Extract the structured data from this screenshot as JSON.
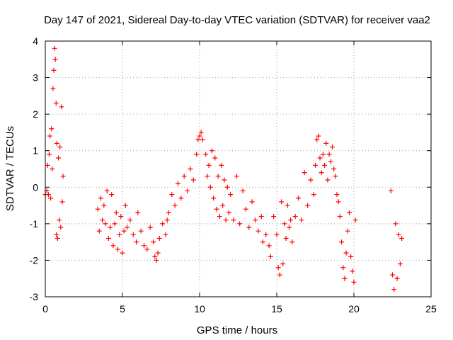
{
  "chart_data": {
    "type": "scatter",
    "title": "Day 147 of 2021, Sidereal Day-to-day VTEC variation (SDTVAR) for receiver vaa2",
    "xlabel": "GPS time / hours",
    "ylabel": "SDTVAR / TECUs",
    "xlim": [
      0,
      25
    ],
    "ylim": [
      -3,
      4
    ],
    "xticks": [
      0,
      5,
      10,
      15,
      20,
      25
    ],
    "yticks": [
      -3,
      -2,
      -1,
      0,
      1,
      2,
      3,
      4
    ],
    "grid": true,
    "marker": "+",
    "color": "#ff0000",
    "series": [
      {
        "name": "vaa2",
        "points": [
          [
            0.0,
            -0.2
          ],
          [
            0.1,
            -0.1
          ],
          [
            0.15,
            0.6
          ],
          [
            0.2,
            -0.2
          ],
          [
            0.25,
            0.9
          ],
          [
            0.3,
            1.4
          ],
          [
            0.35,
            -0.3
          ],
          [
            0.4,
            1.6
          ],
          [
            0.45,
            0.5
          ],
          [
            0.5,
            2.7
          ],
          [
            0.55,
            3.2
          ],
          [
            0.6,
            3.8
          ],
          [
            0.65,
            3.5
          ],
          [
            0.7,
            2.3
          ],
          [
            0.72,
            -1.3
          ],
          [
            0.75,
            1.2
          ],
          [
            0.8,
            -1.4
          ],
          [
            0.85,
            0.8
          ],
          [
            0.9,
            -0.9
          ],
          [
            0.95,
            1.1
          ],
          [
            1.0,
            -1.1
          ],
          [
            1.05,
            2.2
          ],
          [
            1.1,
            -0.4
          ],
          [
            1.15,
            0.3
          ],
          [
            3.4,
            -0.6
          ],
          [
            3.5,
            -1.2
          ],
          [
            3.6,
            -0.3
          ],
          [
            3.7,
            -0.9
          ],
          [
            3.8,
            -0.5
          ],
          [
            3.9,
            -1.0
          ],
          [
            4.0,
            -0.1
          ],
          [
            4.1,
            -1.4
          ],
          [
            4.2,
            -1.1
          ],
          [
            4.3,
            -0.2
          ],
          [
            4.4,
            -1.6
          ],
          [
            4.5,
            -1.0
          ],
          [
            4.6,
            -0.7
          ],
          [
            4.7,
            -1.7
          ],
          [
            4.8,
            -1.3
          ],
          [
            4.9,
            -0.8
          ],
          [
            5.0,
            -1.8
          ],
          [
            5.1,
            -1.2
          ],
          [
            5.2,
            -0.5
          ],
          [
            5.3,
            -1.1
          ],
          [
            5.5,
            -0.9
          ],
          [
            5.7,
            -1.3
          ],
          [
            5.9,
            -1.5
          ],
          [
            6.0,
            -0.7
          ],
          [
            6.2,
            -1.2
          ],
          [
            6.4,
            -1.6
          ],
          [
            6.6,
            -1.7
          ],
          [
            6.8,
            -1.1
          ],
          [
            7.0,
            -1.5
          ],
          [
            7.1,
            -1.9
          ],
          [
            7.2,
            -2.0
          ],
          [
            7.3,
            -1.8
          ],
          [
            7.4,
            -1.4
          ],
          [
            7.6,
            -1.0
          ],
          [
            7.8,
            -1.3
          ],
          [
            7.9,
            -0.9
          ],
          [
            8.0,
            -0.7
          ],
          [
            8.2,
            -0.2
          ],
          [
            8.4,
            -0.5
          ],
          [
            8.6,
            0.1
          ],
          [
            8.8,
            -0.3
          ],
          [
            9.0,
            0.3
          ],
          [
            9.2,
            -0.1
          ],
          [
            9.4,
            0.5
          ],
          [
            9.6,
            0.2
          ],
          [
            9.8,
            0.9
          ],
          [
            9.9,
            1.3
          ],
          [
            10.0,
            1.4
          ],
          [
            10.1,
            1.5
          ],
          [
            10.2,
            1.3
          ],
          [
            10.4,
            0.9
          ],
          [
            10.5,
            0.3
          ],
          [
            10.6,
            0.6
          ],
          [
            10.7,
            0.0
          ],
          [
            10.8,
            1.0
          ],
          [
            10.9,
            -0.3
          ],
          [
            11.0,
            0.8
          ],
          [
            11.1,
            -0.6
          ],
          [
            11.2,
            0.3
          ],
          [
            11.3,
            -0.8
          ],
          [
            11.4,
            0.6
          ],
          [
            11.5,
            -0.5
          ],
          [
            11.6,
            0.2
          ],
          [
            11.7,
            -0.9
          ],
          [
            11.8,
            0.0
          ],
          [
            11.9,
            -0.7
          ],
          [
            12.0,
            -0.2
          ],
          [
            12.2,
            -0.9
          ],
          [
            12.4,
            0.3
          ],
          [
            12.6,
            -1.0
          ],
          [
            12.8,
            -0.1
          ],
          [
            13.0,
            -0.6
          ],
          [
            13.2,
            -1.1
          ],
          [
            13.4,
            -0.4
          ],
          [
            13.6,
            -0.9
          ],
          [
            13.8,
            -1.2
          ],
          [
            14.0,
            -0.8
          ],
          [
            14.1,
            -1.5
          ],
          [
            14.3,
            -1.3
          ],
          [
            14.5,
            -1.6
          ],
          [
            14.6,
            -1.9
          ],
          [
            14.8,
            -0.8
          ],
          [
            15.0,
            -1.3
          ],
          [
            15.1,
            -2.2
          ],
          [
            15.2,
            -2.4
          ],
          [
            15.3,
            -0.4
          ],
          [
            15.4,
            -2.1
          ],
          [
            15.5,
            -1.0
          ],
          [
            15.6,
            -1.4
          ],
          [
            15.7,
            -0.5
          ],
          [
            15.8,
            -1.1
          ],
          [
            15.9,
            -0.9
          ],
          [
            16.0,
            -1.5
          ],
          [
            16.2,
            -0.8
          ],
          [
            16.4,
            -0.3
          ],
          [
            16.6,
            -0.9
          ],
          [
            16.8,
            0.4
          ],
          [
            17.0,
            -0.5
          ],
          [
            17.2,
            0.2
          ],
          [
            17.4,
            -0.2
          ],
          [
            17.5,
            0.6
          ],
          [
            17.6,
            1.3
          ],
          [
            17.7,
            1.4
          ],
          [
            17.8,
            0.8
          ],
          [
            17.9,
            0.4
          ],
          [
            18.0,
            0.9
          ],
          [
            18.1,
            0.6
          ],
          [
            18.2,
            1.2
          ],
          [
            18.3,
            0.2
          ],
          [
            18.4,
            0.9
          ],
          [
            18.5,
            0.7
          ],
          [
            18.6,
            1.1
          ],
          [
            18.7,
            0.5
          ],
          [
            18.8,
            0.3
          ],
          [
            18.9,
            -0.2
          ],
          [
            19.0,
            -0.4
          ],
          [
            19.1,
            -0.8
          ],
          [
            19.2,
            -1.5
          ],
          [
            19.3,
            -2.2
          ],
          [
            19.4,
            -2.5
          ],
          [
            19.5,
            -1.8
          ],
          [
            19.6,
            -1.2
          ],
          [
            19.7,
            -0.7
          ],
          [
            19.8,
            -1.9
          ],
          [
            19.9,
            -2.3
          ],
          [
            20.0,
            -2.6
          ],
          [
            20.1,
            -0.9
          ],
          [
            22.4,
            -0.1
          ],
          [
            22.5,
            -2.4
          ],
          [
            22.6,
            -2.8
          ],
          [
            22.7,
            -1.0
          ],
          [
            22.8,
            -2.5
          ],
          [
            22.9,
            -1.3
          ],
          [
            23.0,
            -2.1
          ],
          [
            23.1,
            -1.4
          ]
        ]
      }
    ]
  }
}
